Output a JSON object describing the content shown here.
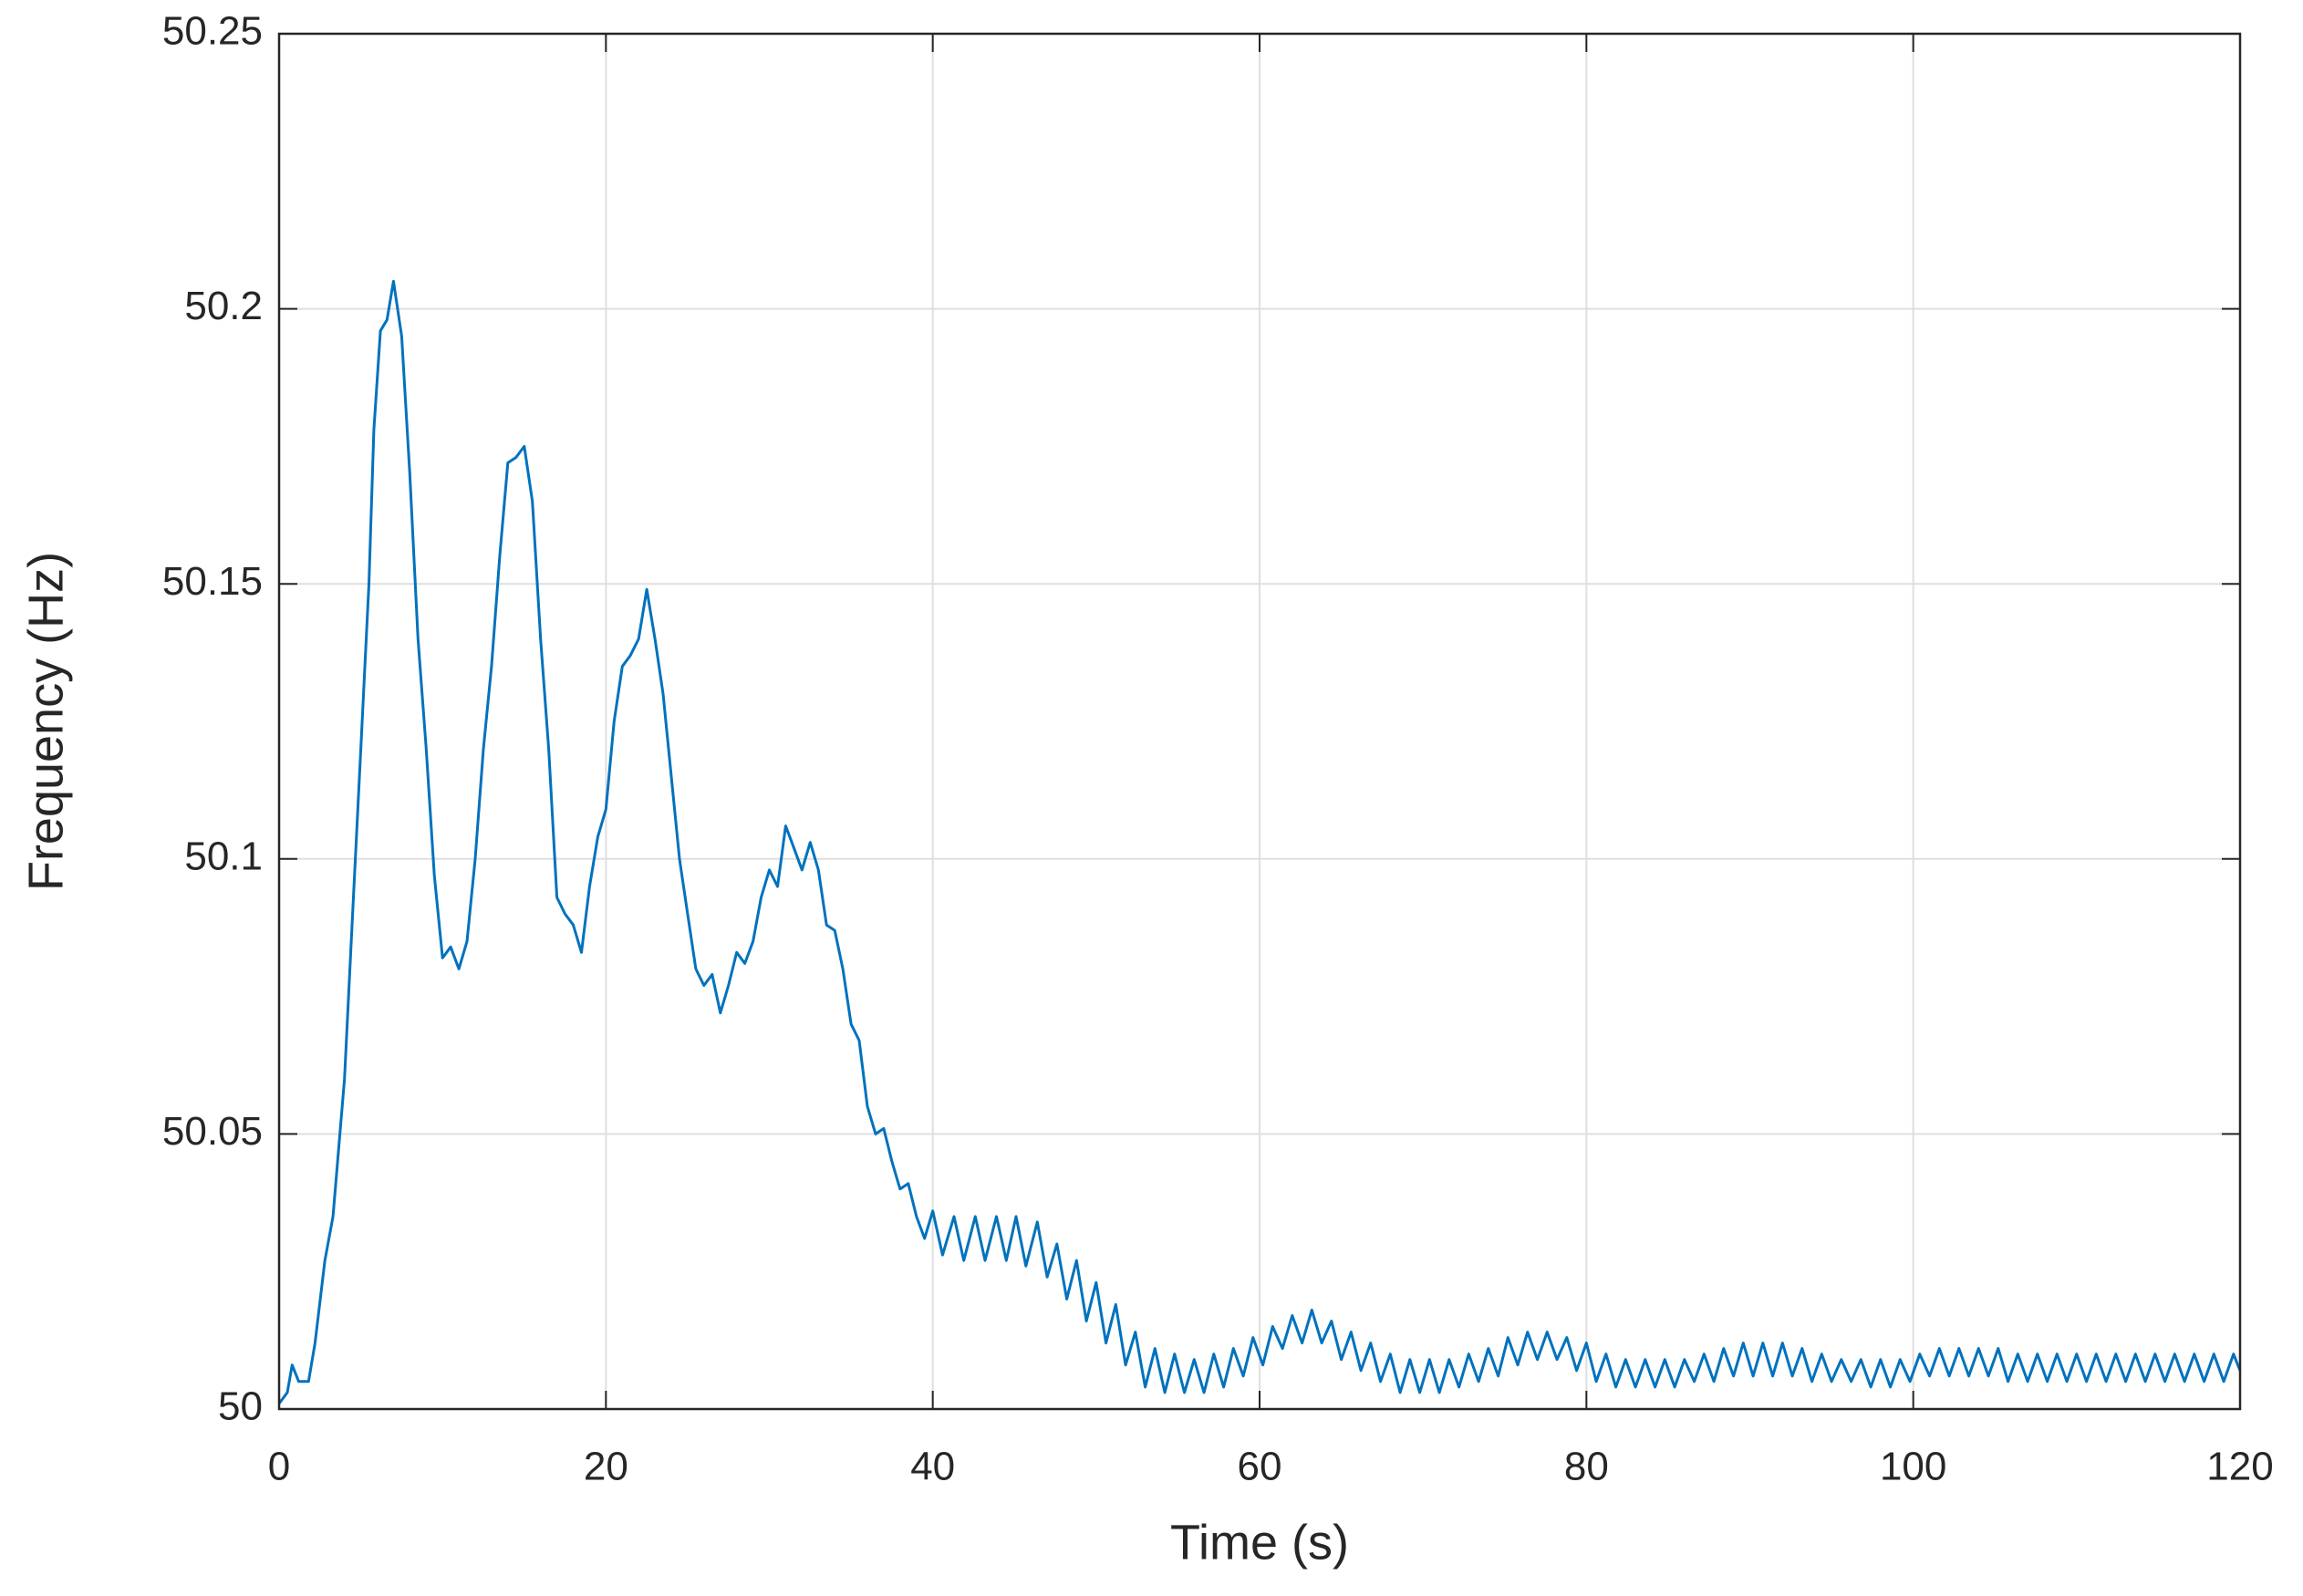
{
  "chart_data": {
    "type": "line",
    "xlabel": "Time (s)",
    "ylabel": "Frequency (Hz)",
    "color": "#0072bd",
    "grid": true,
    "xlim": [
      0,
      120
    ],
    "xticks": [
      0,
      20,
      40,
      60,
      80,
      100,
      120
    ],
    "ylim": [
      50,
      50.25
    ],
    "yticks": [
      50,
      50.05,
      50.1,
      50.15,
      50.2,
      50.25
    ],
    "x": [
      0,
      0.5,
      0.8,
      1.2,
      1.8,
      2.2,
      2.8,
      3.3,
      4,
      4.5,
      5,
      5.5,
      5.8,
      6.2,
      6.6,
      7,
      7.5,
      8,
      8.5,
      9,
      9.5,
      10,
      10.5,
      11,
      11.5,
      12,
      12.5,
      13,
      13.5,
      14,
      14.5,
      15,
      15.5,
      16,
      16.5,
      17,
      17.5,
      18,
      18.5,
      19,
      19.5,
      20,
      20.5,
      21,
      21.5,
      22,
      22.5,
      23,
      23.5,
      24,
      24.5,
      25,
      25.5,
      26,
      26.5,
      27,
      27.5,
      28,
      28.5,
      29,
      29.5,
      30,
      30.5,
      31,
      31.5,
      32,
      32.5,
      33,
      33.5,
      34,
      34.5,
      35,
      35.5,
      36,
      36.5,
      37,
      37.5,
      38,
      38.5,
      39,
      39.5,
      40,
      40.6,
      41.3,
      41.9,
      42.6,
      43.2,
      43.9,
      44.5,
      45.1,
      45.7,
      46.4,
      47,
      47.6,
      48.2,
      48.8,
      49.4,
      50,
      50.6,
      51.2,
      51.8,
      52.4,
      53,
      53.6,
      54.2,
      54.8,
      55.4,
      56,
      56.6,
      57.2,
      57.8,
      58.4,
      59,
      59.6,
      60.2,
      60.8,
      61.4,
      62,
      62.6,
      63.2,
      63.8,
      64.4,
      65,
      65.6,
      66.2,
      66.8,
      67.4,
      68,
      68.6,
      69.2,
      69.8,
      70.4,
      71,
      71.6,
      72.2,
      72.8,
      73.4,
      74,
      74.6,
      75.2,
      75.8,
      76.4,
      77,
      77.6,
      78.2,
      78.8,
      79.4,
      80,
      80.6,
      81.2,
      81.8,
      82.4,
      83,
      83.6,
      84.2,
      84.8,
      85.4,
      86,
      86.6,
      87.2,
      87.8,
      88.4,
      89,
      89.6,
      90.2,
      90.8,
      91.4,
      92,
      92.6,
      93.2,
      93.8,
      94.4,
      95,
      95.6,
      96.2,
      96.8,
      97.4,
      98,
      98.6,
      99.2,
      99.8,
      100.4,
      101,
      101.6,
      102.2,
      102.8,
      103.4,
      104,
      104.6,
      105.2,
      105.8,
      106.4,
      107,
      107.6,
      108.2,
      108.8,
      109.4,
      110,
      110.6,
      111.2,
      111.8,
      112.4,
      113,
      113.6,
      114.2,
      114.8,
      115.4,
      116,
      116.6,
      117.2,
      117.8,
      118.4,
      119,
      119.6,
      120
    ],
    "values": [
      50.001,
      50.003,
      50.008,
      50.005,
      50.005,
      50.012,
      50.027,
      50.035,
      50.06,
      50.09,
      50.12,
      50.15,
      50.178,
      50.196,
      50.198,
      50.205,
      50.195,
      50.17,
      50.14,
      50.12,
      50.097,
      50.082,
      50.084,
      50.08,
      50.085,
      50.1,
      50.12,
      50.135,
      50.155,
      50.172,
      50.173,
      50.175,
      50.165,
      50.14,
      50.12,
      50.093,
      50.09,
      50.088,
      50.083,
      50.095,
      50.104,
      50.109,
      50.125,
      50.135,
      50.137,
      50.14,
      50.149,
      50.14,
      50.13,
      50.115,
      50.1,
      50.09,
      50.08,
      50.077,
      50.079,
      50.072,
      50.077,
      50.083,
      50.081,
      50.085,
      50.093,
      50.098,
      50.095,
      50.106,
      50.102,
      50.098,
      50.103,
      50.098,
      50.088,
      50.087,
      50.08,
      50.07,
      50.067,
      50.055,
      50.05,
      50.051,
      50.045,
      50.04,
      50.041,
      50.035,
      50.031,
      50.036,
      50.028,
      50.035,
      50.027,
      50.035,
      50.027,
      50.035,
      50.027,
      50.035,
      50.026,
      50.034,
      50.024,
      50.03,
      50.02,
      50.027,
      50.016,
      50.023,
      50.012,
      50.019,
      50.008,
      50.014,
      50.004,
      50.011,
      50.003,
      50.01,
      50.003,
      50.009,
      50.003,
      50.01,
      50.004,
      50.011,
      50.006,
      50.013,
      50.008,
      50.015,
      50.011,
      50.017,
      50.012,
      50.018,
      50.012,
      50.016,
      50.009,
      50.014,
      50.007,
      50.012,
      50.005,
      50.01,
      50.003,
      50.009,
      50.003,
      50.009,
      50.003,
      50.009,
      50.004,
      50.01,
      50.005,
      50.011,
      50.006,
      50.013,
      50.008,
      50.014,
      50.009,
      50.014,
      50.009,
      50.013,
      50.007,
      50.012,
      50.005,
      50.01,
      50.004,
      50.009,
      50.004,
      50.009,
      50.004,
      50.009,
      50.004,
      50.009,
      50.005,
      50.01,
      50.005,
      50.011,
      50.006,
      50.012,
      50.006,
      50.012,
      50.006,
      50.012,
      50.006,
      50.011,
      50.005,
      50.01,
      50.005,
      50.009,
      50.005,
      50.009,
      50.004,
      50.009,
      50.004,
      50.009,
      50.005,
      50.01,
      50.006,
      50.011,
      50.006,
      50.011,
      50.006,
      50.011,
      50.006,
      50.011,
      50.005,
      50.01,
      50.005,
      50.01,
      50.005,
      50.01,
      50.005,
      50.01,
      50.005,
      50.01,
      50.005,
      50.01,
      50.005,
      50.01,
      50.005,
      50.01,
      50.005,
      50.01,
      50.005,
      50.01,
      50.005,
      50.01,
      50.005,
      50.01,
      50.007
    ]
  }
}
